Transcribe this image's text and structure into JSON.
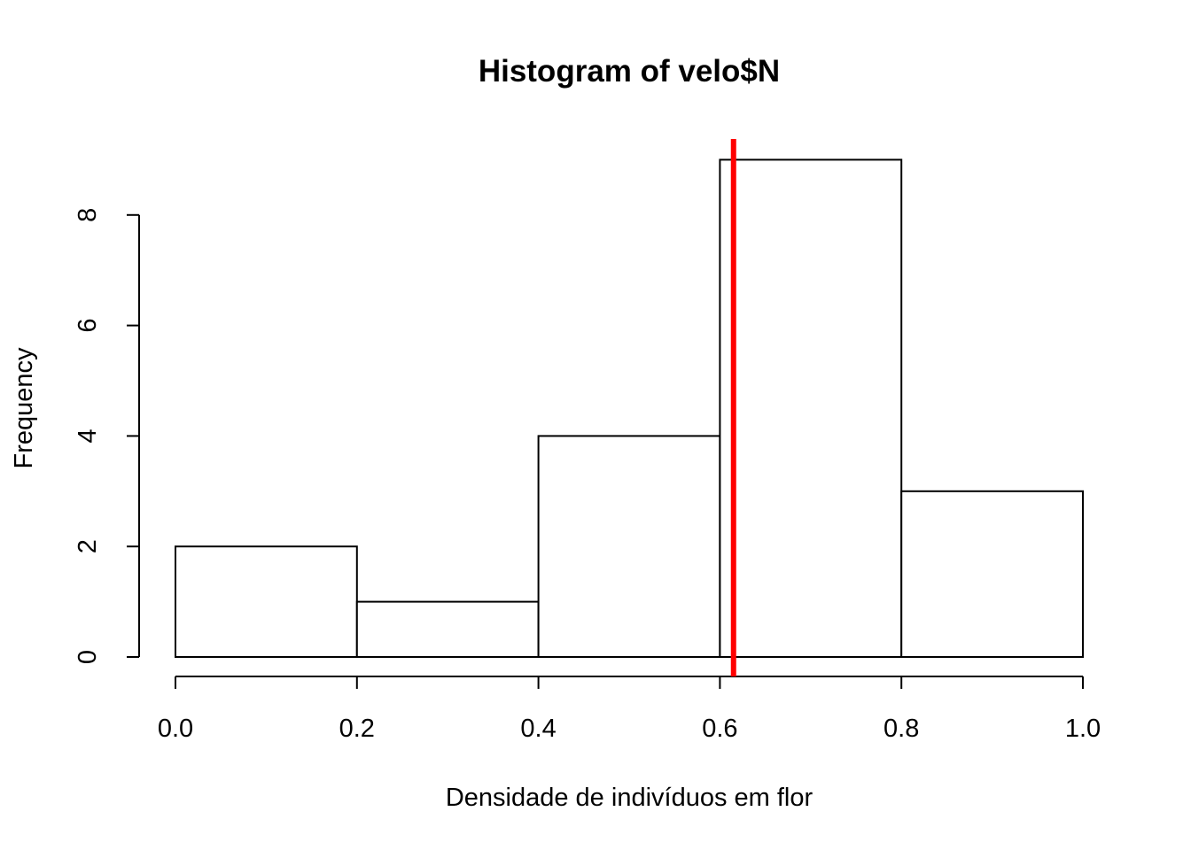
{
  "chart_data": {
    "type": "bar",
    "subtype": "histogram",
    "title": "Histogram of velo$N",
    "xlabel": "Densidade de indivíduos em flor",
    "ylabel": "Frequency",
    "bins": [
      {
        "from": 0.0,
        "to": 0.2,
        "count": 2
      },
      {
        "from": 0.2,
        "to": 0.4,
        "count": 1
      },
      {
        "from": 0.4,
        "to": 0.6,
        "count": 4
      },
      {
        "from": 0.6,
        "to": 0.8,
        "count": 9
      },
      {
        "from": 0.8,
        "to": 1.0,
        "count": 3
      }
    ],
    "xlim": [
      0.0,
      1.0
    ],
    "ylim": [
      0,
      9
    ],
    "x_ticks": [
      "0.0",
      "0.2",
      "0.4",
      "0.6",
      "0.8",
      "1.0"
    ],
    "y_ticks": [
      "0",
      "2",
      "4",
      "6",
      "8"
    ],
    "vline": {
      "x": 0.615,
      "color": "#ff0000"
    },
    "grid": false,
    "legend": "none"
  }
}
